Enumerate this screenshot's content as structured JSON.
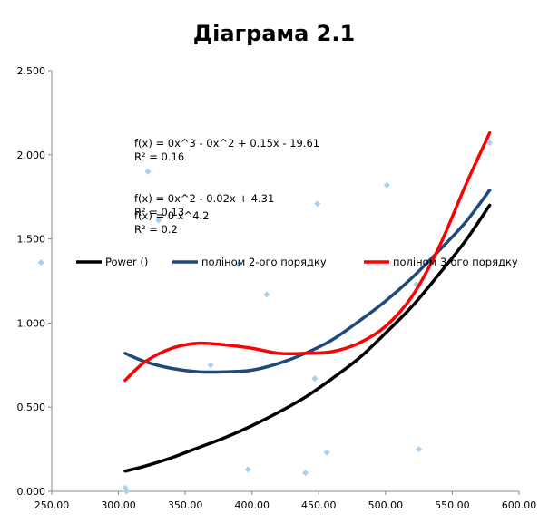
{
  "chart_data": {
    "type": "scatter",
    "title": "Діаграма 2.1",
    "xlabel": "",
    "ylabel": "",
    "xlim": [
      250,
      600
    ],
    "ylim": [
      0,
      2.5
    ],
    "x_ticks": [
      "250.00",
      "300.00",
      "350.00",
      "400.00",
      "450.00",
      "500.00",
      "550.00",
      "600.00"
    ],
    "y_ticks": [
      "0.000",
      "0.500",
      "1.000",
      "1.500",
      "2.000",
      "2.500"
    ],
    "grid": false,
    "points_color": "#a8d0f0",
    "points": [
      {
        "x": 305,
        "y": 0.02
      },
      {
        "x": 306,
        "y": 0.0
      },
      {
        "x": 322,
        "y": 1.9
      },
      {
        "x": 330,
        "y": 1.61
      },
      {
        "x": 369,
        "y": 0.75
      },
      {
        "x": 390,
        "y": 1.35
      },
      {
        "x": 397,
        "y": 0.13
      },
      {
        "x": 411,
        "y": 1.17
      },
      {
        "x": 440,
        "y": 0.11
      },
      {
        "x": 447,
        "y": 0.67
      },
      {
        "x": 449,
        "y": 1.71
      },
      {
        "x": 456,
        "y": 0.23
      },
      {
        "x": 501,
        "y": 1.82
      },
      {
        "x": 523,
        "y": 1.23
      },
      {
        "x": 525,
        "y": 0.25
      },
      {
        "x": 578,
        "y": 2.07
      },
      {
        "x": 242,
        "y": 1.36
      }
    ],
    "series": [
      {
        "name": "Power ()",
        "color": "#000000",
        "x": [
          305,
          320,
          340,
          360,
          380,
          400,
          420,
          440,
          460,
          480,
          500,
          520,
          540,
          560,
          578
        ],
        "y": [
          0.12,
          0.15,
          0.2,
          0.26,
          0.32,
          0.39,
          0.47,
          0.56,
          0.67,
          0.79,
          0.94,
          1.1,
          1.29,
          1.49,
          1.7
        ]
      },
      {
        "name": "поліном 2-ого порядку",
        "color": "#1f497d",
        "x": [
          305,
          320,
          340,
          360,
          380,
          400,
          420,
          440,
          460,
          480,
          500,
          520,
          540,
          560,
          578
        ],
        "y": [
          0.82,
          0.77,
          0.73,
          0.71,
          0.71,
          0.72,
          0.76,
          0.82,
          0.9,
          1.01,
          1.13,
          1.27,
          1.43,
          1.6,
          1.79
        ]
      },
      {
        "name": "поліном 3-ого порядку",
        "color": "#ff0000",
        "x": [
          305,
          320,
          340,
          360,
          380,
          400,
          420,
          440,
          460,
          480,
          500,
          520,
          540,
          560,
          578
        ],
        "y": [
          0.66,
          0.77,
          0.85,
          0.88,
          0.87,
          0.85,
          0.82,
          0.82,
          0.83,
          0.88,
          0.98,
          1.16,
          1.45,
          1.82,
          2.13
        ]
      }
    ],
    "legend": [
      {
        "label": "Power ()",
        "color": "#000000"
      },
      {
        "label": "поліном 2-ого порядку",
        "color": "#1f497d"
      },
      {
        "label": "поліном 3-ого порядку",
        "color": "#ff0000"
      }
    ],
    "legend_position": "middle",
    "annotations": [
      {
        "text": "f(x) = 0x^3 - 0x^2 + 0.15x - 19.61"
      },
      {
        "text": "R² = 0.16"
      },
      {
        "text": "f(x) = 0x^2 - 0.02x + 4.31"
      },
      {
        "text": "R² = 0.13"
      },
      {
        "text": "f(x) = 0 x^4.2"
      },
      {
        "text": "R² = 0.2"
      }
    ]
  }
}
